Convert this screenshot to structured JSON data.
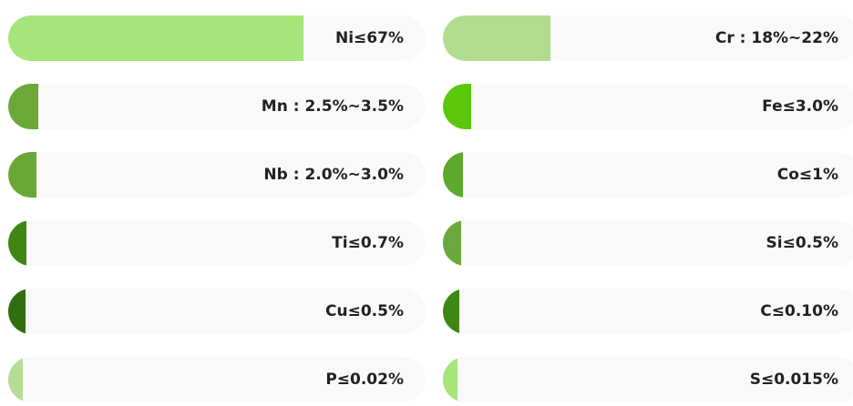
{
  "elements": [
    {
      "label": "Ni≤67%",
      "level": 0.707,
      "color": "#a6e57a"
    },
    {
      "label": "Cr : 18%~22%",
      "level": 0.257,
      "color": "#b2dd8f"
    },
    {
      "label": "Mn : 2.5%~3.5%",
      "level": 0.072,
      "color": "#6aa838"
    },
    {
      "label": "Fe≤3.0%",
      "level": 0.068,
      "color": "#5cc80c"
    },
    {
      "label": "Nb : 2.0%~3.0%",
      "level": 0.068,
      "color": "#68a837"
    },
    {
      "label": "Co≤1%",
      "level": 0.048,
      "color": "#5da92c"
    },
    {
      "label": "Ti≤0.7%",
      "level": 0.044,
      "color": "#418614"
    },
    {
      "label": "Si≤0.5%",
      "level": 0.044,
      "color": "#6aa83b"
    },
    {
      "label": "Cu≤0.5%",
      "level": 0.041,
      "color": "#326e10"
    },
    {
      "label": "C≤0.10%",
      "level": 0.039,
      "color": "#3e8714"
    },
    {
      "label": "P≤0.02%",
      "level": 0.035,
      "color": "#b6dd96"
    },
    {
      "label": "S≤0.015%",
      "level": 0.035,
      "color": "#a6e57a"
    }
  ]
}
